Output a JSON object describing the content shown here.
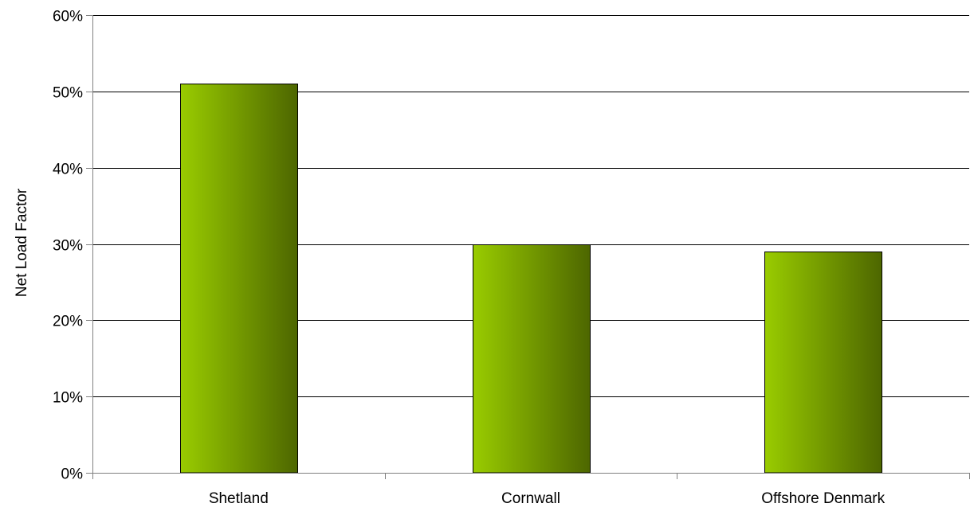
{
  "chart_data": {
    "type": "bar",
    "title": "",
    "xlabel": "",
    "ylabel": "Net Load Factor",
    "categories": [
      "Shetland",
      "Cornwall",
      "Offshore Denmark"
    ],
    "values": [
      0.51,
      0.3,
      0.29
    ],
    "ylim": [
      0,
      0.6
    ],
    "yticks": [
      0,
      0.1,
      0.2,
      0.3,
      0.4,
      0.5,
      0.6
    ],
    "ytick_labels": [
      "0%",
      "10%",
      "20%",
      "30%",
      "40%",
      "50%",
      "60%"
    ],
    "grid": true,
    "legend": "none",
    "colors": {
      "bar_light": "#99cc00",
      "bar_dark": "#4d6600",
      "bar_stroke": "#000000",
      "grid": "#000000",
      "axis": "#808080"
    }
  }
}
